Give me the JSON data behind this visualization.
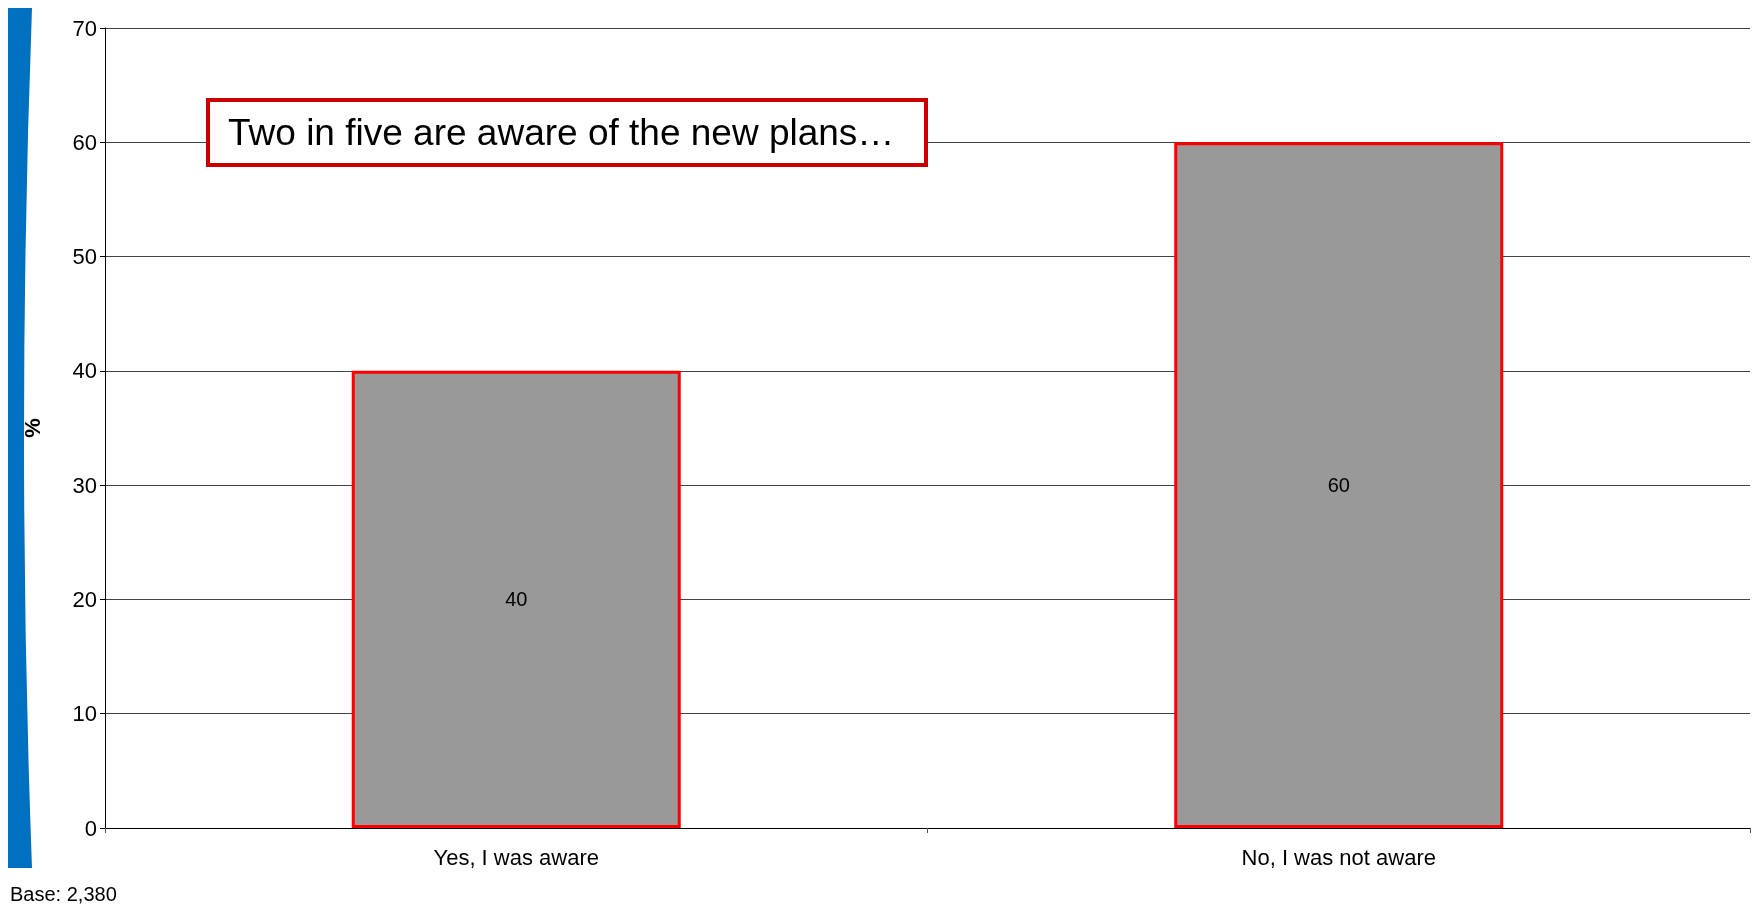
{
  "chart_data": {
    "type": "bar",
    "title": "Two in five are aware of the new plans…",
    "ylabel": "%",
    "categories": [
      "Yes, I was aware",
      "No, I was not aware"
    ],
    "values": [
      40,
      60
    ],
    "color": "#999999",
    "ylim": [
      0,
      70
    ],
    "yticks": [
      0,
      10,
      20,
      30,
      40,
      50,
      60,
      70
    ],
    "grid": "y",
    "data_labels": true,
    "annotations": [
      "Base: 2,380"
    ]
  }
}
